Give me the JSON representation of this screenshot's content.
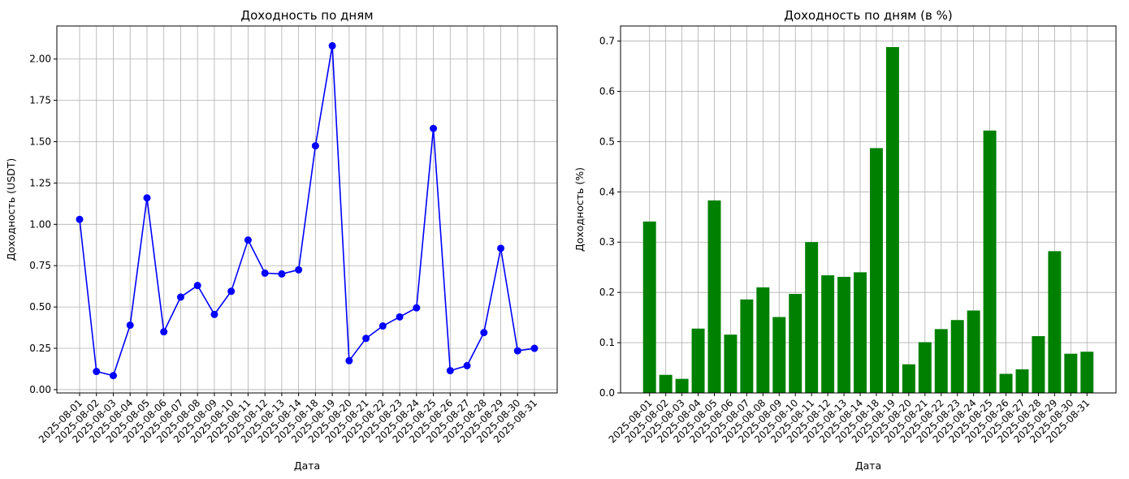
{
  "chart_data": [
    {
      "type": "line",
      "title": "Доходность по дням",
      "xlabel": "Дата",
      "ylabel": "Доходность (USDT)",
      "grid": true,
      "color": "#0000ff",
      "ylim": [
        -0.02,
        2.2
      ],
      "yticks": [
        "0.00",
        "0.25",
        "0.50",
        "0.75",
        "1.00",
        "1.25",
        "1.50",
        "1.75",
        "2.00"
      ],
      "categories": [
        "2025-08-01",
        "2025-08-02",
        "2025-08-03",
        "2025-08-04",
        "2025-08-05",
        "2025-08-06",
        "2025-08-07",
        "2025-08-08",
        "2025-08-09",
        "2025-08-10",
        "2025-08-11",
        "2025-08-12",
        "2025-08-13",
        "2025-08-14",
        "2025-08-18",
        "2025-08-19",
        "2025-08-20",
        "2025-08-21",
        "2025-08-22",
        "2025-08-23",
        "2025-08-24",
        "2025-08-25",
        "2025-08-26",
        "2025-08-27",
        "2025-08-28",
        "2025-08-29",
        "2025-08-30",
        "2025-08-31"
      ],
      "values": [
        1.03,
        0.11,
        0.085,
        0.39,
        1.16,
        0.35,
        0.56,
        0.63,
        0.455,
        0.595,
        0.905,
        0.705,
        0.7,
        0.725,
        1.475,
        2.08,
        0.175,
        0.31,
        0.385,
        0.44,
        0.495,
        1.58,
        0.115,
        0.145,
        0.345,
        0.855,
        0.235,
        0.25
      ]
    },
    {
      "type": "bar",
      "title": "Доходность по дням (в %)",
      "xlabel": "Дата",
      "ylabel": "Доходность (%)",
      "grid": true,
      "color": "#008000",
      "ylim": [
        0,
        0.73
      ],
      "yticks": [
        "0.0",
        "0.1",
        "0.2",
        "0.3",
        "0.4",
        "0.5",
        "0.6",
        "0.7"
      ],
      "categories": [
        "2025-08-01",
        "2025-08-02",
        "2025-08-03",
        "2025-08-04",
        "2025-08-05",
        "2025-08-06",
        "2025-08-07",
        "2025-08-08",
        "2025-08-09",
        "2025-08-10",
        "2025-08-11",
        "2025-08-12",
        "2025-08-13",
        "2025-08-14",
        "2025-08-18",
        "2025-08-19",
        "2025-08-20",
        "2025-08-21",
        "2025-08-22",
        "2025-08-23",
        "2025-08-24",
        "2025-08-25",
        "2025-08-26",
        "2025-08-27",
        "2025-08-28",
        "2025-08-29",
        "2025-08-30",
        "2025-08-31"
      ],
      "values": [
        0.341,
        0.036,
        0.028,
        0.128,
        0.383,
        0.116,
        0.186,
        0.21,
        0.151,
        0.197,
        0.3,
        0.234,
        0.231,
        0.24,
        0.487,
        0.688,
        0.057,
        0.101,
        0.127,
        0.145,
        0.164,
        0.522,
        0.038,
        0.047,
        0.113,
        0.282,
        0.078,
        0.082
      ]
    }
  ]
}
